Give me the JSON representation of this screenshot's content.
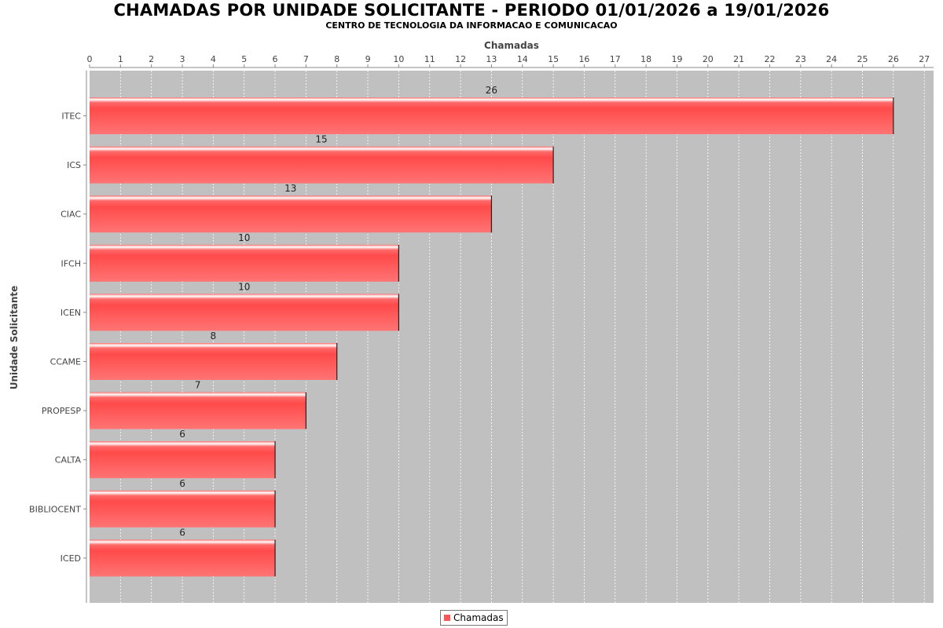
{
  "chart_data": {
    "type": "bar",
    "orientation": "horizontal",
    "title": "CHAMADAS POR UNIDADE SOLICITANTE - PERIODO 01/01/2026 a 19/01/2026",
    "subtitle": "CENTRO DE TECNOLOGIA DA INFORMACAO E COMUNICACAO",
    "xlabel": "Chamadas",
    "ylabel": "Unidade Solicitante",
    "categories": [
      "ITEC",
      "ICS",
      "CIAC",
      "IFCH",
      "ICEN",
      "CCAME",
      "PROPESP",
      "CALTA",
      "BIBLIOCENT",
      "ICED"
    ],
    "series": [
      {
        "name": "Chamadas",
        "values": [
          26,
          15,
          13,
          10,
          10,
          8,
          7,
          6,
          6,
          6
        ],
        "color": "#ff5555"
      }
    ],
    "xlim": [
      0,
      27.3
    ],
    "xticks": [
      0,
      1,
      2,
      3,
      4,
      5,
      6,
      7,
      8,
      9,
      10,
      11,
      12,
      13,
      14,
      15,
      16,
      17,
      18,
      19,
      20,
      21,
      22,
      23,
      24,
      25,
      26,
      27
    ],
    "x_axis_position": "top",
    "grid": true,
    "data_labels": true,
    "legend": "bottom-center",
    "plot_background": "#c0c0c0"
  }
}
